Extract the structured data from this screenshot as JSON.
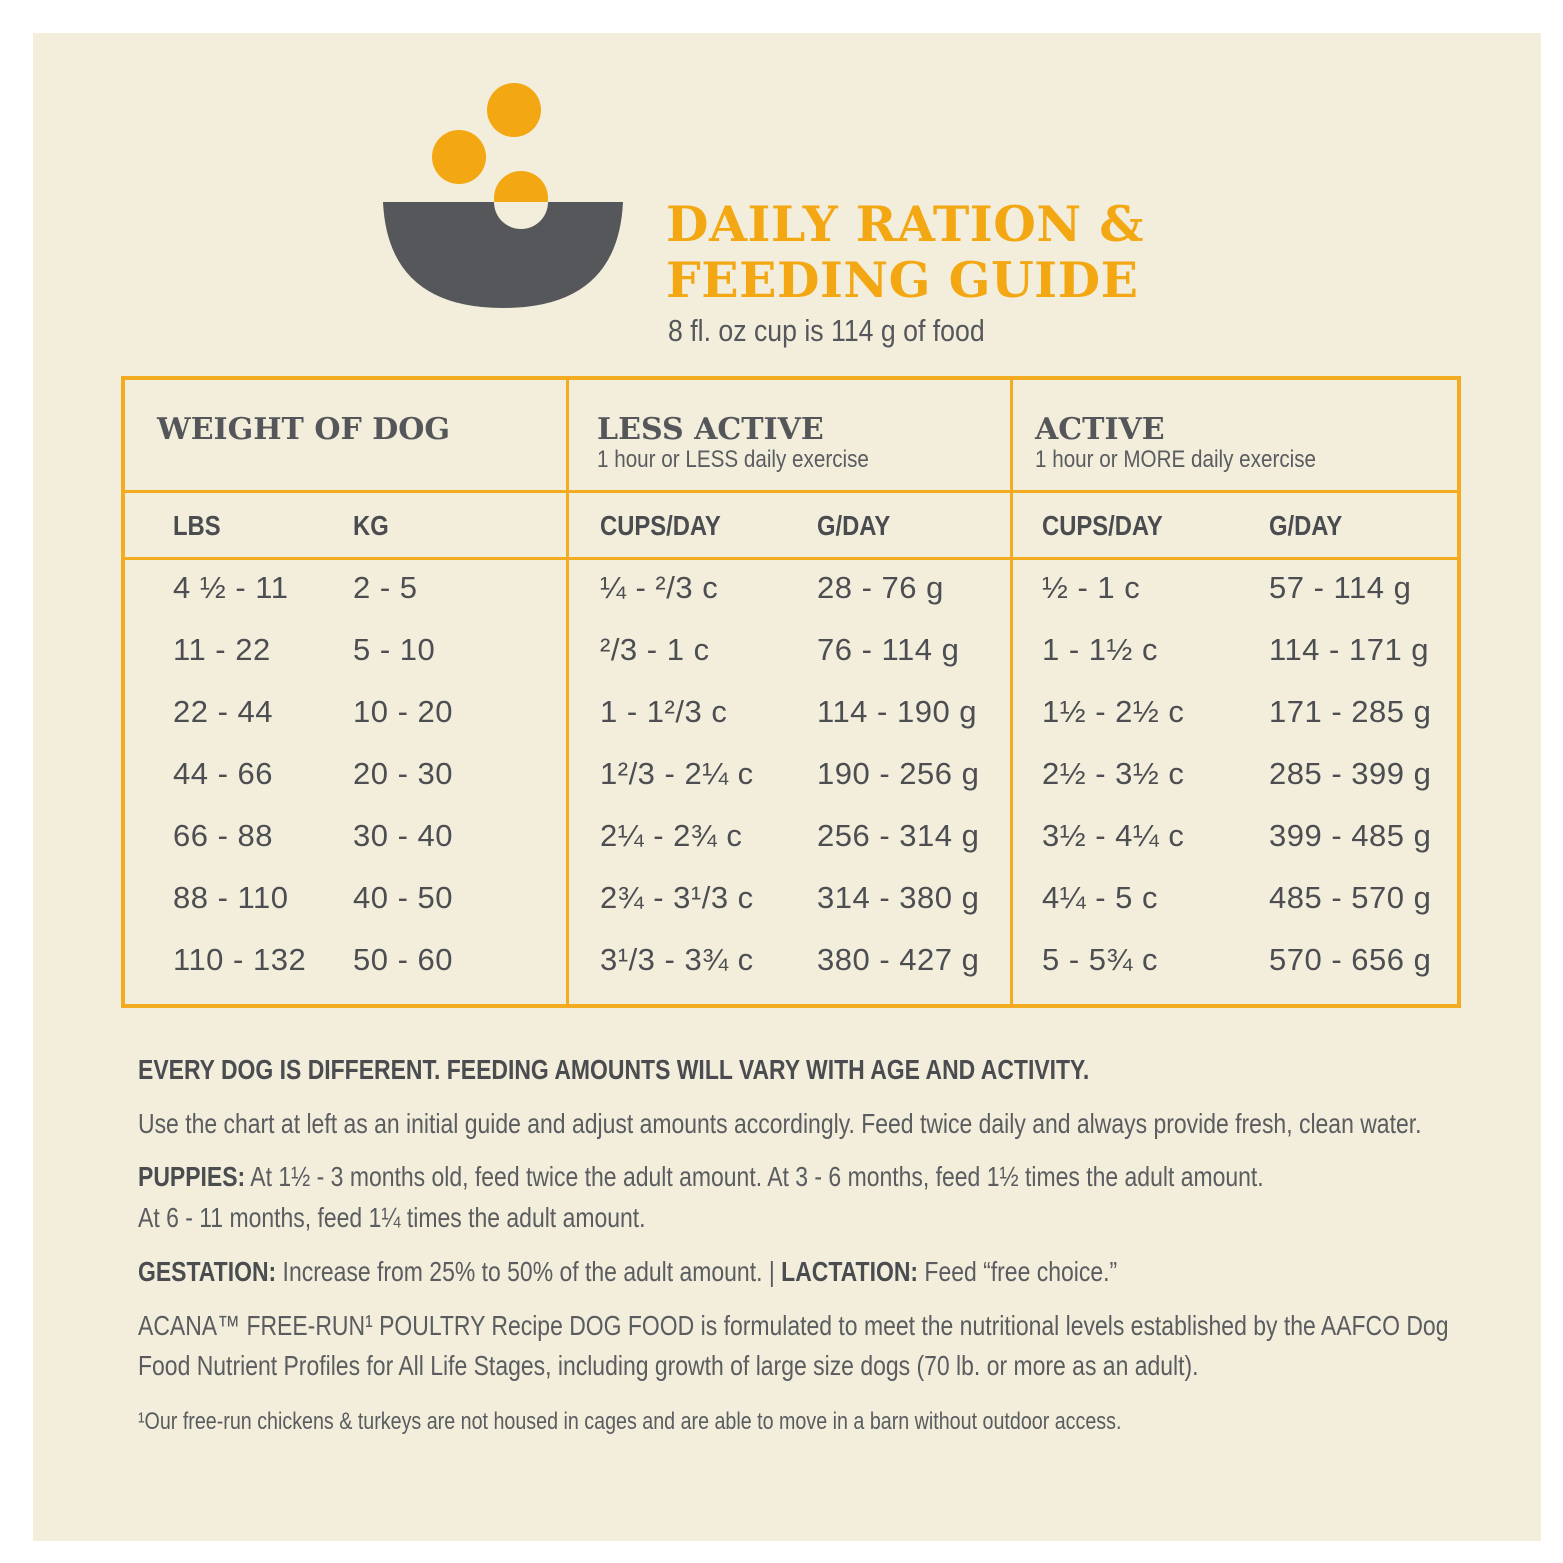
{
  "header": {
    "title_line1": "DAILY RATION &",
    "title_line2": "FEEDING GUIDE",
    "subtitle": "8 fl. oz cup is 114 g of food"
  },
  "colors": {
    "accent": "#f3a712",
    "bowl": "#55575b",
    "background": "#f2eedb"
  },
  "table": {
    "groups": [
      {
        "title": "WEIGHT OF DOG",
        "subtitle": ""
      },
      {
        "title": "LESS ACTIVE",
        "subtitle": "1 hour or LESS daily exercise"
      },
      {
        "title": "ACTIVE",
        "subtitle": "1 hour or MORE daily exercise"
      }
    ],
    "columns": [
      "LBS",
      "KG",
      "CUPS/DAY",
      "G/DAY",
      "CUPS/DAY",
      "G/DAY"
    ],
    "rows": [
      [
        "4 ½ - 11",
        "2 - 5",
        "¼ - ²/3 c",
        "28 - 76 g",
        "½ - 1 c",
        "57 - 114 g"
      ],
      [
        "11 - 22",
        "5 - 10",
        "²/3 - 1 c",
        "76 - 114 g",
        "1 - 1½ c",
        "114 - 171 g"
      ],
      [
        "22 - 44",
        "10 - 20",
        "1 - 1²/3 c",
        "114 - 190 g",
        "1½ - 2½ c",
        "171 - 285 g"
      ],
      [
        "44 - 66",
        "20 - 30",
        "1²/3 - 2¼ c",
        "190 - 256 g",
        "2½ - 3½ c",
        "285 - 399 g"
      ],
      [
        "66 - 88",
        "30 - 40",
        "2¼ - 2¾ c",
        "256 - 314 g",
        "3½ - 4¼ c",
        "399 - 485 g"
      ],
      [
        "88 - 110",
        "40 - 50",
        "2¾ - 3¹/3 c",
        "314 - 380 g",
        "4¼ - 5 c",
        "485 - 570 g"
      ],
      [
        "110 - 132",
        "50 - 60",
        "3¹/3 - 3¾ c",
        "380 - 427 g",
        "5 - 5¾ c",
        "570 - 656 g"
      ]
    ]
  },
  "notes": {
    "heading": "EVERY DOG IS DIFFERENT. FEEDING AMOUNTS WILL VARY WITH AGE AND ACTIVITY.",
    "intro": "Use the chart at left as an initial guide and adjust amounts accordingly. Feed twice daily and always provide fresh, clean water.",
    "puppies_label": "PUPPIES:",
    "puppies_line1": " At 1½ - 3 months old, feed twice the adult amount. At 3 - 6 months, feed 1½ times the adult amount.",
    "puppies_line2": "At 6 - 11 months, feed 1¼ times the adult amount.",
    "gestation_label": "GESTATION:",
    "gestation_text": " Increase from 25% to 50% of the adult amount. | ",
    "lactation_label": "LACTATION:",
    "lactation_text": " Feed “free choice.”",
    "aafco_line1": "ACANA™ FREE-RUN¹ POULTRY Recipe DOG FOOD is formulated to meet the nutritional levels established by the AAFCO Dog",
    "aafco_line2": "Food Nutrient Profiles for All Life Stages, including growth of large size dogs (70 lb. or more as an adult).",
    "footnote": "¹Our free-run chickens & turkeys are not housed in cages and are able to move in a barn without outdoor access."
  }
}
